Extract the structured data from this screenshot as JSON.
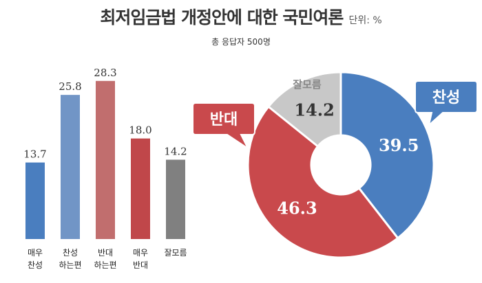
{
  "title": "최저임금법 개정안에 대한 국민여론",
  "unit": "단위: %",
  "subtitle": "총 응답자 500명",
  "chart_data": [
    {
      "type": "bar",
      "categories": [
        {
          "line1": "매우",
          "line2": "찬성"
        },
        {
          "line1": "찬성",
          "line2": "하는편"
        },
        {
          "line1": "반대",
          "line2": "하는편"
        },
        {
          "line1": "매우",
          "line2": "반대"
        },
        {
          "line1": "잘모름",
          "line2": ""
        }
      ],
      "values": [
        13.7,
        25.8,
        28.3,
        18.0,
        14.2
      ],
      "value_labels": [
        "13.7",
        "25.8",
        "28.3",
        "18.0",
        "14.2"
      ],
      "colors": [
        "#4a7ebf",
        "#7195c6",
        "#c16e6e",
        "#c0474a",
        "#808080"
      ],
      "ylim": [
        0,
        30
      ]
    },
    {
      "type": "pie",
      "style": "donut",
      "slices": [
        {
          "label": "찬성",
          "value": 39.5,
          "value_label": "39.5",
          "color": "#4a7ebf",
          "text_color": "#ffffff"
        },
        {
          "label": "반대",
          "value": 46.3,
          "value_label": "46.3",
          "color": "#c9494c",
          "text_color": "#ffffff"
        },
        {
          "label": "잘모름",
          "value": 14.2,
          "value_label": "14.2",
          "color": "#c8c8c8",
          "text_color": "#333333"
        }
      ]
    }
  ]
}
